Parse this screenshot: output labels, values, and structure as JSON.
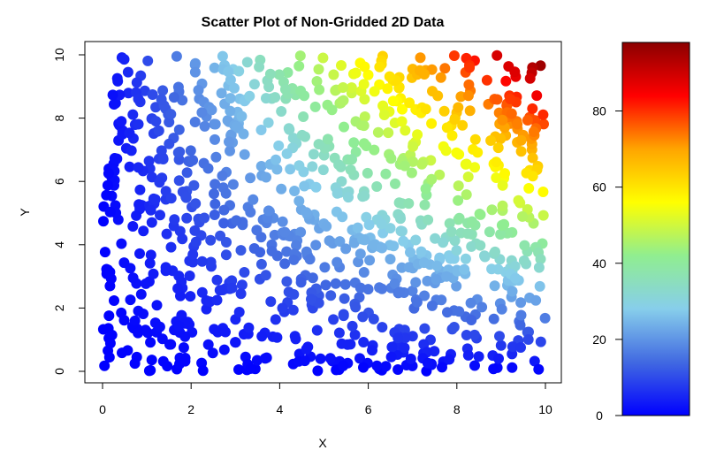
{
  "chart_data": {
    "type": "scatter",
    "title": "Scatter Plot of Non-Gridded 2D Data",
    "xlabel": "X",
    "ylabel": "Y",
    "xlim": [
      0,
      10
    ],
    "ylim": [
      0,
      10
    ],
    "xticks": [
      "0",
      "2",
      "4",
      "6",
      "8",
      "10"
    ],
    "yticks": [
      "0",
      "2",
      "4",
      "6",
      "8",
      "10"
    ],
    "point_count": 1000,
    "value_rule": "z = x * y (colour-coded)",
    "colorbar": {
      "range": [
        0,
        98
      ],
      "ticks": [
        "0",
        "20",
        "40",
        "60",
        "80"
      ],
      "colors": [
        "#0000ff",
        "#4169e1",
        "#87ceeb",
        "#90ee90",
        "#ffff00",
        "#ffa500",
        "#ff0000",
        "#8b0000"
      ],
      "placement": "right"
    },
    "sample_points": [
      {
        "x": 0.1,
        "y": 9.1,
        "z": 0.9
      },
      {
        "x": 0.3,
        "y": 0.4,
        "z": 0.1
      },
      {
        "x": 2.2,
        "y": 9.1,
        "z": 20.0
      },
      {
        "x": 4.8,
        "y": 5.8,
        "z": 27.8
      },
      {
        "x": 6.1,
        "y": 9.6,
        "z": 58.6
      },
      {
        "x": 7.5,
        "y": 9.8,
        "z": 73.5
      },
      {
        "x": 9.9,
        "y": 9.8,
        "z": 97.0
      },
      {
        "x": 9.8,
        "y": 0.7,
        "z": 6.9
      }
    ]
  }
}
